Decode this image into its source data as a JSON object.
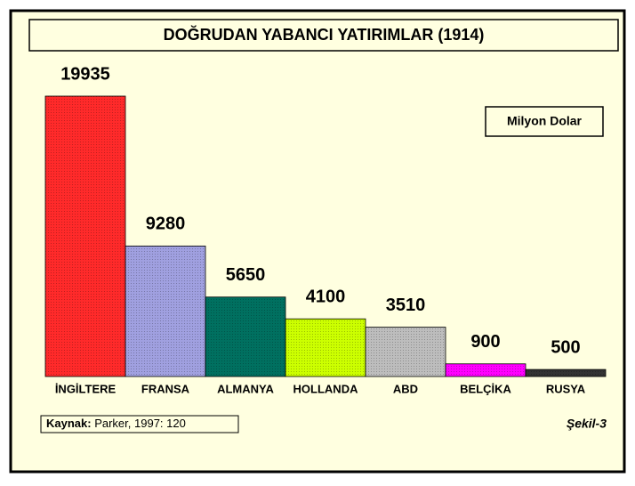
{
  "chart_data": {
    "type": "bar",
    "title": "DOĞRUDAN YABANCI YATIRIMLAR (1914)",
    "unit": "Milyon Dolar",
    "categories": [
      "İNGİLTERE",
      "FRANSA",
      "ALMANYA",
      "HOLLANDA",
      "ABD",
      "BELÇİKA",
      "RUSYA"
    ],
    "values": [
      19935,
      9280,
      5650,
      4100,
      3510,
      900,
      500
    ],
    "colors": [
      "#ff2a2a",
      "#a0a0e0",
      "#007060",
      "#ccff00",
      "#bdbdbd",
      "#ff00ff",
      "#333333"
    ],
    "source": {
      "label": "Kaynak:",
      "text": "Parker, 1997: 120"
    },
    "figure": "Şekil-3"
  }
}
